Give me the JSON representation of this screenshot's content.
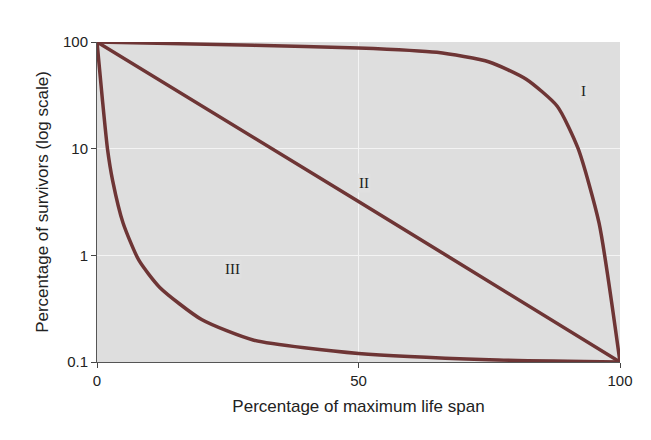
{
  "chart_data": {
    "type": "line",
    "x_label": "Percentage of maximum life span",
    "y_label": "Percentage of survivors (log scale)",
    "log": "y",
    "grid": true,
    "xlim": [
      0,
      100
    ],
    "xticks": [
      0,
      50,
      100
    ],
    "ylim": [
      0.1,
      100
    ],
    "yticks": [
      0.1,
      1,
      10,
      100
    ],
    "series": [
      {
        "name": "I",
        "color": "#6e3535",
        "x": [
          0,
          30,
          50,
          65,
          75,
          82,
          88,
          92,
          96,
          100
        ],
        "values": [
          100,
          93,
          88,
          80,
          65,
          45,
          25,
          10,
          2,
          0.1
        ],
        "label_at": [
          93,
          35
        ]
      },
      {
        "name": "II",
        "color": "#6e3535",
        "x": [
          0,
          50,
          100
        ],
        "values": [
          100,
          3.2,
          0.1
        ],
        "label_at": [
          51,
          4.8
        ]
      },
      {
        "name": "III",
        "color": "#6e3535",
        "x": [
          0,
          1,
          2,
          3,
          5,
          8,
          12,
          20,
          30,
          50,
          75,
          100
        ],
        "values": [
          100,
          30,
          10,
          5,
          2,
          0.9,
          0.5,
          0.25,
          0.16,
          0.12,
          0.105,
          0.1
        ],
        "label_at": [
          26,
          0.74
        ]
      }
    ]
  }
}
